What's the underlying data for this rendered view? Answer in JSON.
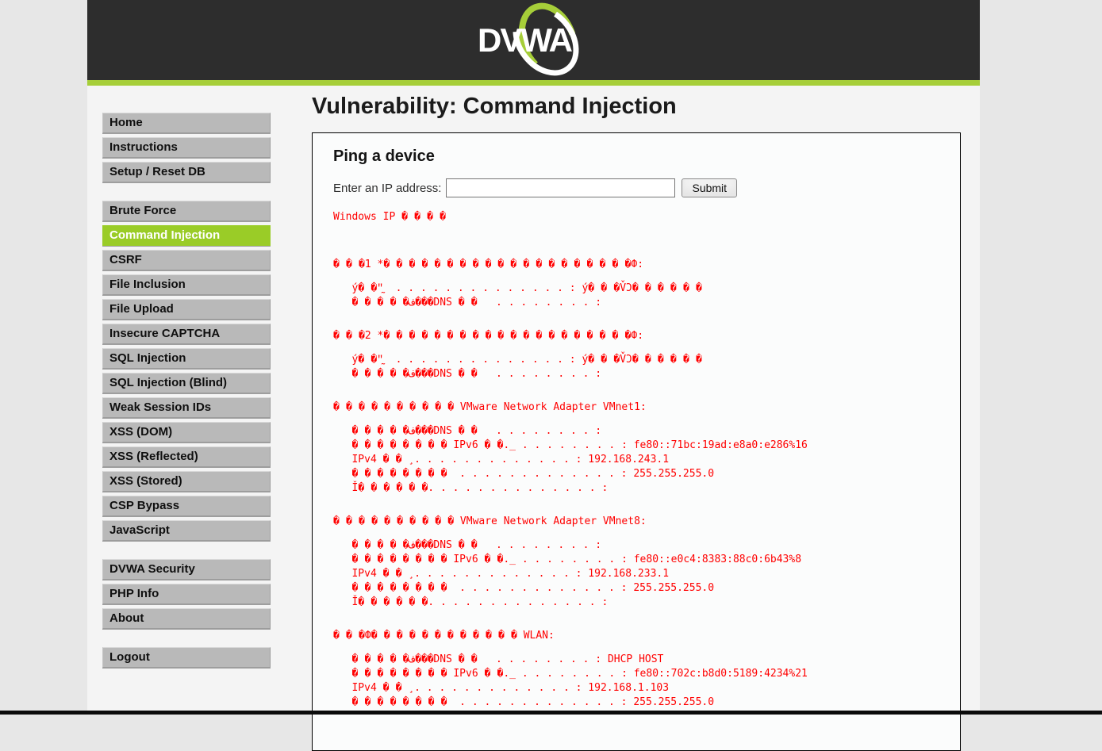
{
  "header": {
    "logo_text": "DVWA"
  },
  "page_title": "Vulnerability: Command Injection",
  "sidebar": {
    "groups": [
      {
        "items": [
          {
            "label": "Home"
          },
          {
            "label": "Instructions"
          },
          {
            "label": "Setup / Reset DB"
          }
        ]
      },
      {
        "items": [
          {
            "label": "Brute Force"
          },
          {
            "label": "Command Injection",
            "active": true
          },
          {
            "label": "CSRF"
          },
          {
            "label": "File Inclusion"
          },
          {
            "label": "File Upload"
          },
          {
            "label": "Insecure CAPTCHA"
          },
          {
            "label": "SQL Injection"
          },
          {
            "label": "SQL Injection (Blind)"
          },
          {
            "label": "Weak Session IDs"
          },
          {
            "label": "XSS (DOM)"
          },
          {
            "label": "XSS (Reflected)"
          },
          {
            "label": "XSS (Stored)"
          },
          {
            "label": "CSP Bypass"
          },
          {
            "label": "JavaScript"
          }
        ]
      },
      {
        "items": [
          {
            "label": "DVWA Security"
          },
          {
            "label": "PHP Info"
          },
          {
            "label": "About"
          }
        ]
      },
      {
        "items": [
          {
            "label": "Logout"
          }
        ]
      }
    ]
  },
  "main": {
    "box_title": "Ping a device",
    "form": {
      "label": "Enter an IP address:",
      "input_value": "",
      "submit_label": "Submit"
    },
    "output_lines": [
      "Windows IP ����",
      "",
      "",
      "���1 *��������� �����������Ф:",
      "",
      "   ý��ʺ̰  . . . . . . . . . . . . . . : ý���V̌Ɔ������",
      "   �����ف��� DNS ��   . . . . . . . . : ",
      "",
      "���2 *��������� �����������Ф:",
      "",
      "   ý��ʺ̰  . . . . . . . . . . . . . . : ý���V̌Ɔ������",
      "   �����ف��� DNS ��   . . . . . . . . : ",
      "",
      "���������� VMware Network Adapter VMnet1:",
      "",
      "   �����ف��� DNS ��   . . . . . . . . : ",
      "   �������� IPv6 ��._ . . . . . . . . : fe80::71bc:19ad:e8a0:e286%16",
      "   IPv4 �� ¸. . . . . . . . . . . . . : 192.168.243.1",
      "   ��������  . . . . . . . . . . . . . : 255.255.255.0",
      "   Ǐ������. . . . . . . . . . . . . . : ",
      "",
      "���������� VMware Network Adapter VMnet8:",
      "",
      "   �����ف��� DNS ��   . . . . . . . . : ",
      "   �������� IPv6 ��._ . . . . . . . . : fe80::e0c4:8383:88c0:6b43%8",
      "   IPv4 �� ¸. . . . . . . . . . . . . : 192.168.233.1",
      "   ��������  . . . . . . . . . . . . . : 255.255.255.0",
      "   Ǐ������. . . . . . . . . . . . . . : ",
      "",
      "���Ф������������ WLAN:",
      "",
      "   �����ف��� DNS ��   . . . . . . . . : DHCP HOST",
      "   �������� IPv6 ��._ . . . . . . . . : fe80::702c:b8d0:5189:4234%21",
      "   IPv4 �� ¸. . . . . . . . . . . . . : 192.168.1.103",
      "   ��������  . . . . . . . . . . . . . : 255.255.255.0"
    ]
  },
  "colors": {
    "accent_green": "#a6ce39",
    "active_item_green": "#9acc27",
    "header_bg": "#2d2d2d",
    "output_red": "#ff0000",
    "outer_bg": "#e7e7e7",
    "content_bg": "#f4f4f4"
  }
}
